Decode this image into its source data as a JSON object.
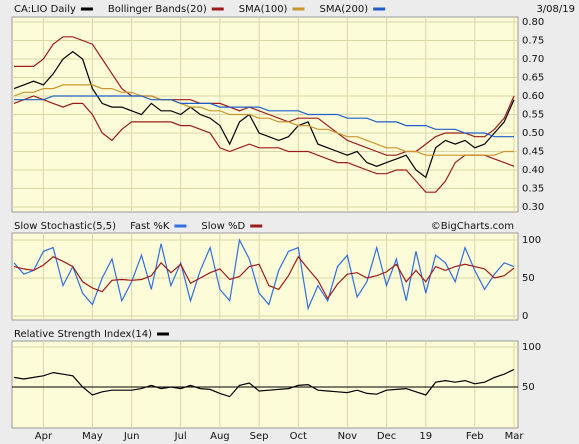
{
  "chart_data": [
    {
      "type": "line",
      "date": "3/08/19",
      "watermark": "©BigCharts.com",
      "categories": [
        null,
        null,
        null,
        "Apr",
        null,
        null,
        null,
        null,
        "May",
        null,
        null,
        null,
        "Jun",
        null,
        null,
        null,
        null,
        "Jul",
        null,
        null,
        null,
        "Aug",
        null,
        null,
        null,
        "Sep",
        null,
        null,
        null,
        "Oct",
        null,
        null,
        null,
        null,
        "Nov",
        null,
        null,
        null,
        "Dec",
        null,
        null,
        null,
        "19",
        null,
        null,
        null,
        null,
        "Feb",
        null,
        null,
        null,
        "Mar"
      ],
      "ylim": [
        0.3,
        0.8
      ],
      "yticks": [
        {
          "value": 0.3,
          "label": "0.30"
        },
        {
          "value": 0.35,
          "label": "0.35"
        },
        {
          "value": 0.4,
          "label": "0.40"
        },
        {
          "value": 0.45,
          "label": "0.45"
        },
        {
          "value": 0.5,
          "label": "0.50"
        },
        {
          "value": 0.55,
          "label": "0.55"
        },
        {
          "value": 0.6,
          "label": "0.60"
        },
        {
          "value": 0.65,
          "label": "0.65"
        },
        {
          "value": 0.7,
          "label": "0.70"
        },
        {
          "value": 0.75,
          "label": "0.75"
        },
        {
          "value": 0.8,
          "label": "0.80"
        }
      ],
      "grid": true,
      "series": [
        {
          "name": "CA:LIO Daily",
          "color": "#000000",
          "values": [
            0.62,
            0.63,
            0.64,
            0.63,
            0.66,
            0.7,
            0.72,
            0.7,
            0.62,
            0.58,
            0.57,
            0.57,
            0.56,
            0.55,
            0.58,
            0.56,
            0.56,
            0.55,
            0.57,
            0.55,
            0.54,
            0.52,
            0.47,
            0.53,
            0.55,
            0.5,
            0.49,
            0.48,
            0.49,
            0.52,
            0.53,
            0.47,
            0.46,
            0.45,
            0.44,
            0.45,
            0.42,
            0.41,
            0.42,
            0.43,
            0.44,
            0.4,
            0.38,
            0.46,
            0.48,
            0.47,
            0.48,
            0.46,
            0.47,
            0.5,
            0.53,
            0.59
          ]
        },
        {
          "name": "Bollinger Bands(20)",
          "color": "#9b1c1c",
          "values": [
            0.68,
            0.68,
            0.68,
            0.7,
            0.74,
            0.76,
            0.76,
            0.75,
            0.74,
            0.7,
            0.66,
            0.62,
            0.6,
            0.6,
            0.6,
            0.59,
            0.59,
            0.59,
            0.59,
            0.58,
            0.58,
            0.58,
            0.57,
            0.56,
            0.57,
            0.56,
            0.55,
            0.54,
            0.53,
            0.54,
            0.54,
            0.54,
            0.52,
            0.5,
            0.48,
            0.47,
            0.46,
            0.45,
            0.44,
            0.44,
            0.45,
            0.45,
            0.47,
            0.49,
            0.5,
            0.5,
            0.5,
            0.49,
            0.49,
            0.51,
            0.54,
            0.6
          ],
          "lower": [
            0.58,
            0.59,
            0.6,
            0.59,
            0.58,
            0.57,
            0.58,
            0.58,
            0.55,
            0.5,
            0.48,
            0.51,
            0.53,
            0.53,
            0.53,
            0.53,
            0.53,
            0.52,
            0.52,
            0.51,
            0.5,
            0.46,
            0.45,
            0.46,
            0.47,
            0.46,
            0.46,
            0.46,
            0.45,
            0.45,
            0.45,
            0.44,
            0.43,
            0.42,
            0.42,
            0.41,
            0.4,
            0.39,
            0.39,
            0.4,
            0.4,
            0.37,
            0.34,
            0.34,
            0.37,
            0.42,
            0.44,
            0.44,
            0.44,
            0.43,
            0.42,
            0.41
          ]
        },
        {
          "name": "SMA(100)",
          "color": "#c9952e",
          "values": [
            0.6,
            0.61,
            0.61,
            0.62,
            0.62,
            0.63,
            0.63,
            0.63,
            0.63,
            0.62,
            0.62,
            0.61,
            0.61,
            0.6,
            0.6,
            0.59,
            0.59,
            0.58,
            0.57,
            0.57,
            0.56,
            0.56,
            0.55,
            0.55,
            0.55,
            0.54,
            0.54,
            0.53,
            0.53,
            0.52,
            0.52,
            0.51,
            0.51,
            0.5,
            0.49,
            0.49,
            0.48,
            0.47,
            0.46,
            0.46,
            0.45,
            0.45,
            0.44,
            0.44,
            0.44,
            0.44,
            0.44,
            0.44,
            0.44,
            0.44,
            0.45,
            0.45
          ]
        },
        {
          "name": "SMA(200)",
          "color": "#1f5fc9",
          "values": [
            0.59,
            0.59,
            0.59,
            0.59,
            0.6,
            0.6,
            0.6,
            0.6,
            0.6,
            0.6,
            0.6,
            0.6,
            0.6,
            0.6,
            0.59,
            0.59,
            0.59,
            0.58,
            0.58,
            0.58,
            0.58,
            0.57,
            0.57,
            0.57,
            0.57,
            0.57,
            0.56,
            0.56,
            0.56,
            0.56,
            0.55,
            0.55,
            0.55,
            0.55,
            0.54,
            0.54,
            0.54,
            0.53,
            0.53,
            0.53,
            0.52,
            0.52,
            0.52,
            0.51,
            0.51,
            0.51,
            0.5,
            0.5,
            0.5,
            0.49,
            0.49,
            0.49
          ]
        }
      ]
    },
    {
      "type": "line",
      "title": "Slow Stochastic(5,5)",
      "ylim": [
        0,
        100
      ],
      "yticks": [
        0,
        50,
        100
      ],
      "grid": true,
      "series": [
        {
          "name": "Fast %K",
          "color": "#2f6fe0",
          "values": [
            70,
            55,
            60,
            85,
            90,
            40,
            65,
            30,
            15,
            50,
            75,
            20,
            45,
            80,
            35,
            95,
            40,
            70,
            20,
            60,
            90,
            35,
            20,
            100,
            75,
            30,
            15,
            60,
            85,
            90,
            10,
            40,
            20,
            65,
            80,
            25,
            45,
            90,
            40,
            75,
            20,
            85,
            30,
            80,
            70,
            45,
            90,
            60,
            35,
            55,
            70,
            65
          ]
        },
        {
          "name": "Slow %D",
          "color": "#9b1c1c",
          "values": [
            65,
            62,
            60,
            67,
            78,
            72,
            65,
            45,
            37,
            32,
            47,
            48,
            47,
            48,
            53,
            70,
            57,
            68,
            43,
            50,
            57,
            62,
            48,
            52,
            65,
            68,
            40,
            35,
            53,
            78,
            62,
            47,
            23,
            42,
            55,
            57,
            50,
            53,
            58,
            68,
            45,
            60,
            45,
            65,
            60,
            65,
            68,
            65,
            62,
            50,
            53,
            63
          ]
        }
      ]
    },
    {
      "type": "line",
      "ylim": [
        0,
        100
      ],
      "yticks": [
        50,
        100
      ],
      "grid": true,
      "hline": 50,
      "series": [
        {
          "name": "Relative Strength Index(14)",
          "color": "#000000",
          "values": [
            62,
            60,
            62,
            64,
            68,
            66,
            64,
            50,
            40,
            44,
            46,
            46,
            46,
            48,
            52,
            48,
            50,
            48,
            52,
            48,
            47,
            42,
            38,
            52,
            55,
            45,
            46,
            47,
            48,
            52,
            53,
            46,
            45,
            44,
            43,
            46,
            42,
            41,
            46,
            47,
            48,
            44,
            40,
            56,
            58,
            56,
            58,
            54,
            56,
            62,
            66,
            72
          ]
        }
      ]
    }
  ]
}
